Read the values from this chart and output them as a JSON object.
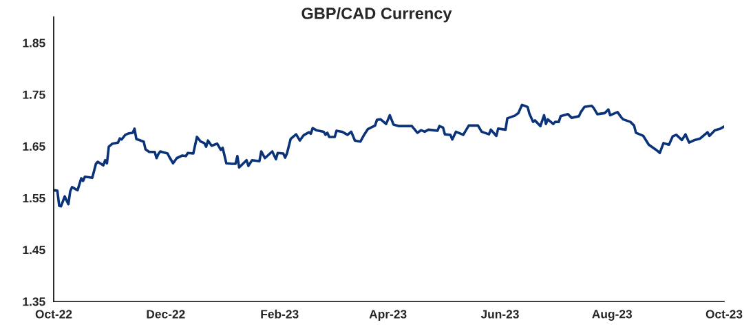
{
  "chart_data": {
    "type": "line",
    "title": "GBP/CAD Currency",
    "x": [
      "2022-10-01",
      "2022-10-03",
      "2022-10-04",
      "2022-10-05",
      "2022-10-07",
      "2022-10-09",
      "2022-10-10",
      "2022-10-11",
      "2022-10-14",
      "2022-10-16",
      "2022-10-17",
      "2022-10-18",
      "2022-10-22",
      "2022-10-24",
      "2022-10-25",
      "2022-10-28",
      "2022-10-29",
      "2022-10-30",
      "2022-10-31",
      "2022-11-02",
      "2022-11-05",
      "2022-11-06",
      "2022-11-07",
      "2022-11-09",
      "2022-11-11",
      "2022-11-13",
      "2022-11-14",
      "2022-11-15",
      "2022-11-19",
      "2022-11-20",
      "2022-11-22",
      "2022-11-25",
      "2022-11-26",
      "2022-11-27",
      "2022-11-28",
      "2022-12-02",
      "2022-12-03",
      "2022-12-05",
      "2022-12-07",
      "2022-12-10",
      "2022-12-12",
      "2022-12-13",
      "2022-12-16",
      "2022-12-18",
      "2022-12-20",
      "2022-12-22",
      "2022-12-23",
      "2022-12-24",
      "2022-12-26",
      "2022-12-29",
      "2022-12-31",
      "2023-01-01",
      "2023-01-03",
      "2023-01-06",
      "2023-01-08",
      "2023-01-09",
      "2023-01-10",
      "2023-01-14",
      "2023-01-15",
      "2023-01-17",
      "2023-01-21",
      "2023-01-22",
      "2023-01-24",
      "2023-01-28",
      "2023-01-30",
      "2023-01-31",
      "2023-02-03",
      "2023-02-04",
      "2023-02-05",
      "2023-02-07",
      "2023-02-10",
      "2023-02-12",
      "2023-02-14",
      "2023-02-17",
      "2023-02-18",
      "2023-02-19",
      "2023-02-21",
      "2023-02-25",
      "2023-02-26",
      "2023-02-27",
      "2023-02-28",
      "2023-03-03",
      "2023-03-04",
      "2023-03-07",
      "2023-03-10",
      "2023-03-12",
      "2023-03-14",
      "2023-03-17",
      "2023-03-19",
      "2023-03-21",
      "2023-03-25",
      "2023-03-26",
      "2023-03-28",
      "2023-03-31",
      "2023-04-02",
      "2023-04-04",
      "2023-04-07",
      "2023-04-10",
      "2023-04-14",
      "2023-04-17",
      "2023-04-19",
      "2023-04-21",
      "2023-04-23",
      "2023-04-28",
      "2023-04-29",
      "2023-05-01",
      "2023-05-02",
      "2023-05-05",
      "2023-05-06",
      "2023-05-08",
      "2023-05-12",
      "2023-05-15",
      "2023-05-20",
      "2023-05-22",
      "2023-05-26",
      "2023-05-27",
      "2023-05-30",
      "2023-05-31",
      "2023-06-04",
      "2023-06-05",
      "2023-06-09",
      "2023-06-11",
      "2023-06-13",
      "2023-06-16",
      "2023-06-17",
      "2023-06-19",
      "2023-06-20",
      "2023-06-23",
      "2023-06-25",
      "2023-06-26",
      "2023-06-27",
      "2023-06-30",
      "2023-07-01",
      "2023-07-03",
      "2023-07-04",
      "2023-07-08",
      "2023-07-10",
      "2023-07-14",
      "2023-07-15",
      "2023-07-17",
      "2023-07-21",
      "2023-07-22",
      "2023-07-24",
      "2023-07-28",
      "2023-07-30",
      "2023-07-31",
      "2023-08-04",
      "2023-08-06",
      "2023-08-07",
      "2023-08-11",
      "2023-08-13",
      "2023-08-14",
      "2023-08-18",
      "2023-08-21",
      "2023-08-23",
      "2023-08-25",
      "2023-08-27",
      "2023-08-29",
      "2023-09-01",
      "2023-09-03",
      "2023-09-05",
      "2023-09-08",
      "2023-09-10",
      "2023-09-12",
      "2023-09-15",
      "2023-09-18",
      "2023-09-22",
      "2023-09-23",
      "2023-09-26",
      "2023-09-29",
      "2023-10-01"
    ],
    "series": [
      {
        "color": "#0b3379",
        "values": [
          1.565,
          1.564,
          1.535,
          1.534,
          1.553,
          1.538,
          1.563,
          1.571,
          1.565,
          1.588,
          1.583,
          1.591,
          1.589,
          1.616,
          1.62,
          1.613,
          1.623,
          1.617,
          1.649,
          1.655,
          1.657,
          1.665,
          1.663,
          1.672,
          1.675,
          1.676,
          1.684,
          1.664,
          1.659,
          1.644,
          1.639,
          1.639,
          1.627,
          1.635,
          1.64,
          1.636,
          1.629,
          1.617,
          1.627,
          1.632,
          1.631,
          1.637,
          1.636,
          1.668,
          1.659,
          1.656,
          1.649,
          1.661,
          1.651,
          1.655,
          1.643,
          1.647,
          1.617,
          1.616,
          1.616,
          1.631,
          1.609,
          1.623,
          1.612,
          1.623,
          1.621,
          1.64,
          1.627,
          1.64,
          1.625,
          1.637,
          1.636,
          1.628,
          1.636,
          1.664,
          1.673,
          1.661,
          1.671,
          1.677,
          1.674,
          1.685,
          1.681,
          1.678,
          1.672,
          1.676,
          1.668,
          1.668,
          1.68,
          1.678,
          1.672,
          1.678,
          1.661,
          1.659,
          1.672,
          1.683,
          1.69,
          1.701,
          1.702,
          1.693,
          1.71,
          1.692,
          1.689,
          1.689,
          1.689,
          1.676,
          1.681,
          1.678,
          1.682,
          1.68,
          1.689,
          1.686,
          1.673,
          1.672,
          1.663,
          1.678,
          1.672,
          1.69,
          1.69,
          1.678,
          1.673,
          1.682,
          1.67,
          1.684,
          1.682,
          1.704,
          1.709,
          1.714,
          1.73,
          1.726,
          1.713,
          1.697,
          1.7,
          1.689,
          1.71,
          1.693,
          1.702,
          1.693,
          1.697,
          1.697,
          1.708,
          1.712,
          1.705,
          1.708,
          1.716,
          1.726,
          1.728,
          1.724,
          1.712,
          1.714,
          1.721,
          1.71,
          1.716,
          1.706,
          1.702,
          1.697,
          1.69,
          1.676,
          1.67,
          1.653,
          1.648,
          1.643,
          1.637,
          1.656,
          1.653,
          1.669,
          1.672,
          1.662,
          1.673,
          1.657,
          1.662,
          1.665,
          1.677,
          1.67,
          1.681,
          1.684,
          1.688
        ]
      }
    ],
    "xlim": [
      "2022-10-01",
      "2023-10-01"
    ],
    "xticks": [
      {
        "value": "2022-10-01",
        "label": "Oct-22"
      },
      {
        "value": "2022-12-01",
        "label": "Dec-22"
      },
      {
        "value": "2023-02-01",
        "label": "Feb-23"
      },
      {
        "value": "2023-04-01",
        "label": "Apr-23"
      },
      {
        "value": "2023-06-01",
        "label": "Jun-23"
      },
      {
        "value": "2023-08-01",
        "label": "Aug-23"
      },
      {
        "value": "2023-10-01",
        "label": "Oct-23"
      }
    ],
    "ylim": [
      1.35,
      1.9
    ],
    "yticks": [
      {
        "value": 1.35,
        "label": "1.35"
      },
      {
        "value": 1.45,
        "label": "1.45"
      },
      {
        "value": 1.55,
        "label": "1.55"
      },
      {
        "value": 1.65,
        "label": "1.65"
      },
      {
        "value": 1.75,
        "label": "1.75"
      },
      {
        "value": 1.85,
        "label": "1.85"
      }
    ],
    "grid": false,
    "legend": false,
    "marker": "none",
    "line_style": "solid"
  }
}
